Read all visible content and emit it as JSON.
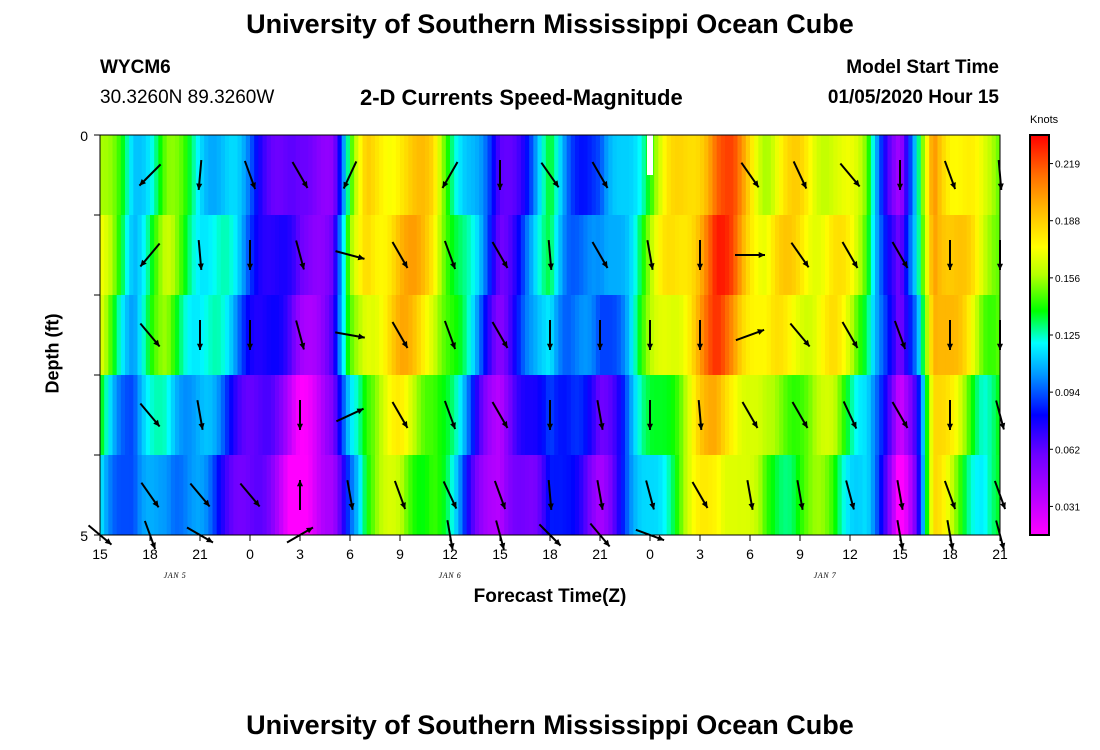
{
  "titles": {
    "top": "University of Southern Mississippi Ocean Cube",
    "bottom": "University of Southern Mississippi Ocean Cube"
  },
  "header": {
    "station": "WYCM6",
    "coords": "30.3260N 89.3260W",
    "product": "2-D Currents Speed-Magnitude",
    "start_label": "Model Start Time",
    "start_value": "01/05/2020 Hour 15"
  },
  "chart_data": {
    "type": "heatmap",
    "title": "2-D Currents Speed-Magnitude",
    "xlabel": "Forecast Time(Z)",
    "ylabel": "Depth (ft)",
    "ylim": [
      0,
      5
    ],
    "y_tick_labels": [
      "0",
      "5"
    ],
    "x_tick_labels": [
      "15",
      "18",
      "21",
      "0",
      "3",
      "6",
      "9",
      "12",
      "15",
      "18",
      "21",
      "0",
      "3",
      "6",
      "9",
      "12",
      "15",
      "18",
      "21"
    ],
    "day_labels": [
      {
        "text": "JAN 5",
        "at_tick": 1.5
      },
      {
        "text": "JAN 6",
        "at_tick": 7
      },
      {
        "text": "JAN 7",
        "at_tick": 14.5
      }
    ],
    "colorbar": {
      "unit": "Knots",
      "range": [
        0.02,
        0.23
      ],
      "ticks": [
        "0.219",
        "0.188",
        "0.156",
        "0.125",
        "0.094",
        "0.062",
        "0.031"
      ]
    },
    "hours": 54,
    "depth_layers": 5,
    "speed_keyframes": [
      [
        0,
        0.15
      ],
      [
        2,
        0.11
      ],
      [
        4,
        0.14
      ],
      [
        6,
        0.12
      ],
      [
        8,
        0.1
      ],
      [
        10,
        0.075
      ],
      [
        12,
        0.045
      ],
      [
        14,
        0.06
      ],
      [
        15,
        0.13
      ],
      [
        16,
        0.17
      ],
      [
        18,
        0.18
      ],
      [
        20,
        0.17
      ],
      [
        22,
        0.11
      ],
      [
        24,
        0.06
      ],
      [
        26,
        0.09
      ],
      [
        27,
        0.12
      ],
      [
        28,
        0.1
      ],
      [
        30,
        0.08
      ],
      [
        32,
        0.12
      ],
      [
        34,
        0.16
      ],
      [
        36,
        0.19
      ],
      [
        37,
        0.205
      ],
      [
        38,
        0.2
      ],
      [
        40,
        0.16
      ],
      [
        42,
        0.17
      ],
      [
        44,
        0.165
      ],
      [
        46,
        0.14
      ],
      [
        47,
        0.09
      ],
      [
        48,
        0.04
      ],
      [
        49,
        0.1
      ],
      [
        50,
        0.2
      ],
      [
        51,
        0.18
      ],
      [
        52,
        0.165
      ],
      [
        53,
        0.15
      ]
    ],
    "depth_offsets": [
      0.005,
      0.01,
      0.005,
      -0.015,
      -0.025
    ],
    "masked_cell": {
      "hour": 33,
      "layer": 0
    },
    "vector_hours": [
      0,
      3,
      6,
      9,
      12,
      15,
      18,
      21,
      24,
      27,
      30,
      33,
      36,
      39,
      42,
      45,
      48,
      51,
      54
    ],
    "vector_layers": [
      0.5,
      1.5,
      2.5,
      3.5,
      4.5,
      5.0
    ],
    "vector_angles_deg": [
      [
        null,
        -45,
        -5,
        20,
        30,
        -25,
        null,
        -30,
        0,
        35,
        30,
        null,
        null,
        35,
        25,
        40,
        0,
        20,
        5
      ],
      [
        null,
        -40,
        5,
        0,
        15,
        75,
        30,
        20,
        30,
        5,
        30,
        10,
        0,
        90,
        35,
        30,
        30,
        0,
        0
      ],
      [
        null,
        40,
        0,
        0,
        15,
        80,
        30,
        20,
        30,
        0,
        0,
        0,
        0,
        110,
        40,
        30,
        20,
        0,
        0
      ],
      [
        null,
        40,
        10,
        null,
        0,
        115,
        30,
        20,
        30,
        0,
        10,
        0,
        5,
        30,
        30,
        25,
        30,
        0,
        15
      ],
      [
        null,
        35,
        40,
        40,
        180,
        10,
        20,
        25,
        20,
        5,
        10,
        15,
        30,
        10,
        10,
        15,
        10,
        20,
        20
      ],
      [
        50,
        20,
        60,
        null,
        120,
        null,
        null,
        10,
        15,
        45,
        40,
        70,
        null,
        null,
        null,
        null,
        10,
        10,
        15
      ]
    ]
  }
}
